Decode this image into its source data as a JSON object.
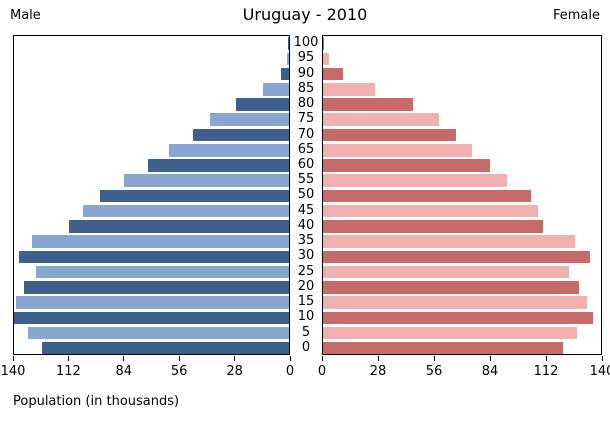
{
  "header": {
    "male_label": "Male",
    "title": "Uruguay - 2010",
    "female_label": "Female"
  },
  "footer": {
    "xlabel": "Population (in thousands)"
  },
  "colors": {
    "male_dark": "#3e608c",
    "male_light": "#87a7d0",
    "female_dark": "#c66a6a",
    "female_light": "#f2b1b1",
    "axis": "#000000",
    "background": "#ffffff"
  },
  "chart_data": {
    "type": "bar",
    "subtype": "population-pyramid",
    "title": "Uruguay - 2010",
    "xlabel": "Population (in thousands)",
    "unit": "thousands of people",
    "xlim": [
      0,
      140
    ],
    "x_ticks": [
      0,
      28,
      56,
      84,
      112,
      140
    ],
    "x_tick_labels_male": [
      "140",
      "112",
      "84",
      "56",
      "28",
      "0"
    ],
    "x_tick_labels_female": [
      "0",
      "28",
      "56",
      "84",
      "112",
      "140"
    ],
    "age_axis_ticks": [
      100,
      95,
      90,
      85,
      80,
      75,
      70,
      65,
      60,
      55,
      50,
      45,
      40,
      35,
      30,
      25,
      20,
      15,
      10,
      5,
      0
    ],
    "shade_rule": "bars for ages divisible by 10 use dark shade, others light shade",
    "legend": "none",
    "grid": "off",
    "series": [
      {
        "name": "Male",
        "side": "left"
      },
      {
        "name": "Female",
        "side": "right"
      }
    ],
    "rows": [
      {
        "age": 100,
        "male": 0.3,
        "female": 0.4
      },
      {
        "age": 95,
        "male": 1,
        "female": 3
      },
      {
        "age": 90,
        "male": 4,
        "female": 10
      },
      {
        "age": 85,
        "male": 13,
        "female": 26
      },
      {
        "age": 80,
        "male": 27,
        "female": 45.5
      },
      {
        "age": 75,
        "male": 40,
        "female": 58.5
      },
      {
        "age": 70,
        "male": 49,
        "female": 67
      },
      {
        "age": 65,
        "male": 61,
        "female": 75
      },
      {
        "age": 60,
        "male": 72,
        "female": 84
      },
      {
        "age": 55,
        "male": 84,
        "female": 92.5
      },
      {
        "age": 50,
        "male": 96,
        "female": 104.5
      },
      {
        "age": 45,
        "male": 105,
        "female": 108.5
      },
      {
        "age": 40,
        "male": 112,
        "female": 111
      },
      {
        "age": 35,
        "male": 131,
        "female": 127
      },
      {
        "age": 30,
        "male": 137.5,
        "female": 134.5
      },
      {
        "age": 25,
        "male": 129,
        "female": 124
      },
      {
        "age": 20,
        "male": 135,
        "female": 129
      },
      {
        "age": 15,
        "male": 139,
        "female": 133
      },
      {
        "age": 10,
        "male": 140,
        "female": 136
      },
      {
        "age": 5,
        "male": 133,
        "female": 128
      },
      {
        "age": 0,
        "male": 126,
        "female": 121
      }
    ]
  }
}
